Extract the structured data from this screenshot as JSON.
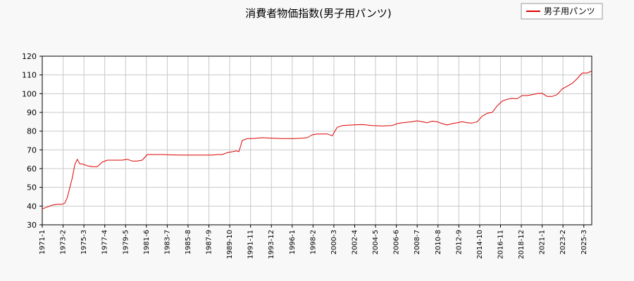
{
  "chart_data": {
    "type": "line",
    "title": "消費者物価指数(男子用パンツ)",
    "xlabel": "",
    "ylabel": "",
    "ylim": [
      30,
      120
    ],
    "yticks": [
      30,
      40,
      50,
      60,
      70,
      80,
      90,
      100,
      110,
      120
    ],
    "xticks": [
      "1971-1",
      "1973-2",
      "1975-3",
      "1977-4",
      "1979-5",
      "1981-6",
      "1983-7",
      "1985-8",
      "1987-9",
      "1989-10",
      "1991-11",
      "1993-12",
      "1996-1",
      "1998-2",
      "2000-3",
      "2002-4",
      "2004-5",
      "2006-6",
      "2008-7",
      "2010-8",
      "2012-9",
      "2014-10",
      "2016-11",
      "2018-12",
      "2021-1",
      "2023-2",
      "2025-3"
    ],
    "grid": true,
    "legend": "top-right",
    "series": [
      {
        "name": "男子用パンツ",
        "color": "#dd0000",
        "x": [
          "1971-01",
          "1971-07",
          "1972-01",
          "1972-07",
          "1973-01",
          "1973-04",
          "1973-07",
          "1974-01",
          "1974-04",
          "1974-07",
          "1974-10",
          "1975-01",
          "1975-07",
          "1976-01",
          "1976-07",
          "1977-01",
          "1977-07",
          "1978-01",
          "1978-07",
          "1979-01",
          "1979-07",
          "1980-01",
          "1980-07",
          "1981-01",
          "1981-07",
          "1982-01",
          "1983-01",
          "1984-01",
          "1985-01",
          "1986-01",
          "1987-01",
          "1988-01",
          "1988-07",
          "1989-01",
          "1989-07",
          "1990-01",
          "1990-06",
          "1990-09",
          "1991-01",
          "1991-07",
          "1992-01",
          "1993-01",
          "1994-01",
          "1995-01",
          "1996-01",
          "1997-01",
          "1997-07",
          "1998-01",
          "1998-07",
          "1999-01",
          "1999-07",
          "2000-01",
          "2000-07",
          "2001-01",
          "2002-01",
          "2003-01",
          "2004-01",
          "2005-01",
          "2006-01",
          "2006-07",
          "2007-01",
          "2008-01",
          "2008-07",
          "2009-01",
          "2009-07",
          "2010-01",
          "2010-07",
          "2011-01",
          "2011-07",
          "2012-01",
          "2012-07",
          "2013-01",
          "2013-07",
          "2014-01",
          "2014-07",
          "2015-01",
          "2015-07",
          "2016-01",
          "2016-07",
          "2017-01",
          "2017-07",
          "2018-01",
          "2018-07",
          "2019-01",
          "2019-07",
          "2020-01",
          "2020-07",
          "2021-01",
          "2021-07",
          "2022-01",
          "2022-07",
          "2023-01",
          "2023-07",
          "2024-01",
          "2024-07",
          "2025-01",
          "2025-07",
          "2025-12"
        ],
        "values": [
          38.5,
          39.5,
          40.5,
          41,
          41,
          41.5,
          44.5,
          55,
          62,
          65,
          62.5,
          62.5,
          61.5,
          61,
          61,
          63.5,
          64.5,
          64.5,
          64.5,
          64.5,
          65,
          64,
          64,
          64.5,
          67.5,
          67.5,
          67.5,
          67.3,
          67.2,
          67.2,
          67.2,
          67.2,
          67.5,
          67.5,
          68.5,
          69,
          69.5,
          69,
          75,
          76,
          76,
          76.5,
          76.2,
          76,
          76,
          76.2,
          76.5,
          78,
          78.5,
          78.5,
          78.5,
          77.5,
          82,
          83,
          83.3,
          83.5,
          83,
          82.8,
          83,
          84,
          84.5,
          85,
          85.5,
          85,
          84.5,
          85.3,
          85,
          84,
          83.3,
          84,
          84.5,
          85,
          84.5,
          84.3,
          85,
          88,
          89.5,
          90,
          93.5,
          96,
          97,
          97.5,
          97.3,
          99,
          99,
          99.5,
          100,
          100.2,
          98.5,
          98.5,
          99.5,
          102.5,
          104,
          105.5,
          108,
          111,
          111,
          112
        ]
      }
    ]
  }
}
